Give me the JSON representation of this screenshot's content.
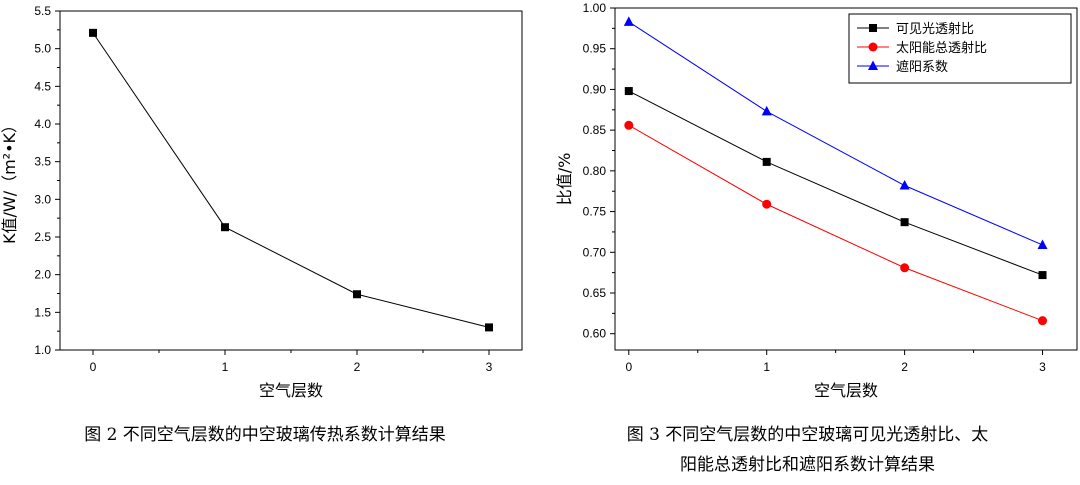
{
  "chart_data": [
    {
      "type": "line",
      "title": "",
      "x": [
        0,
        1,
        2,
        3
      ],
      "series": [
        {
          "name": "K值",
          "color": "#000000",
          "marker": "square",
          "values": [
            5.21,
            2.63,
            1.74,
            1.3
          ]
        }
      ],
      "xlabel": "空气层数",
      "ylabel": "K值/W/（m²•K）",
      "xlim": [
        -0.25,
        3.25
      ],
      "ylim": [
        1.0,
        5.5
      ],
      "xticks": [
        0,
        1,
        2,
        3
      ],
      "yticks": [
        1.0,
        1.5,
        2.0,
        2.5,
        3.0,
        3.5,
        4.0,
        4.5,
        5.0,
        5.5
      ],
      "ytick_format": 1,
      "grid": false,
      "legend": false
    },
    {
      "type": "line",
      "title": "",
      "x": [
        0,
        1,
        2,
        3
      ],
      "series": [
        {
          "name": "可见光透射比",
          "color": "#000000",
          "marker": "square",
          "values": [
            0.898,
            0.811,
            0.737,
            0.672
          ]
        },
        {
          "name": "太阳能总透射比",
          "color": "#ff0000",
          "marker": "circle",
          "values": [
            0.856,
            0.759,
            0.681,
            0.616
          ]
        },
        {
          "name": "遮阳系数",
          "color": "#0000ff",
          "marker": "triangle",
          "values": [
            0.983,
            0.873,
            0.782,
            0.709
          ]
        }
      ],
      "xlabel": "空气层数",
      "ylabel": "比值/%",
      "xlim": [
        -0.1,
        3.25
      ],
      "ylim": [
        0.58,
        1.0
      ],
      "xticks": [
        0,
        1,
        2,
        3
      ],
      "yticks": [
        0.6,
        0.65,
        0.7,
        0.75,
        0.8,
        0.85,
        0.9,
        0.95,
        1.0
      ],
      "ytick_format": 2,
      "grid": false,
      "legend": "top-right"
    }
  ],
  "captions": {
    "fig1": "图 2   不同空气层数的中空玻璃传热系数计算结果",
    "fig2_line1": "图 3   不同空气层数的中空玻璃可见光透射比、太",
    "fig2_line2": "阳能总透射比和遮阳系数计算结果"
  }
}
